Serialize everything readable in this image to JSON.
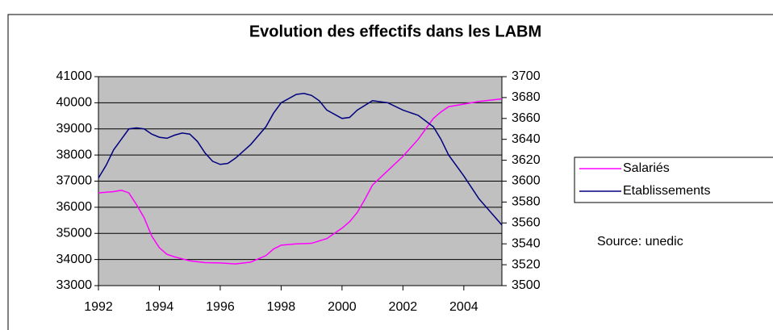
{
  "chart_data": {
    "type": "line",
    "title": "Evolution des effectifs dans les LABM",
    "annotation": "Source: unedic",
    "xlim": [
      1992,
      2005.25
    ],
    "xticks": [
      1992,
      1994,
      1996,
      1998,
      2000,
      2002,
      2004
    ],
    "ylim": [
      33000,
      41000
    ],
    "yticks": [
      33000,
      34000,
      35000,
      36000,
      37000,
      38000,
      39000,
      40000,
      41000
    ],
    "y2lim": [
      3500,
      3700
    ],
    "y2ticks": [
      3500,
      3520,
      3540,
      3560,
      3580,
      3600,
      3620,
      3640,
      3660,
      3680,
      3700
    ],
    "grid": true,
    "legend": "right",
    "series": [
      {
        "name": "Salariés",
        "color": "#ff00ff",
        "axis": "y",
        "x": [
          1992,
          1992.5,
          1992.75,
          1993,
          1993.25,
          1993.5,
          1993.75,
          1994,
          1994.25,
          1994.5,
          1995,
          1995.5,
          1996,
          1996.5,
          1997,
          1997.5,
          1997.75,
          1998,
          1998.5,
          1999,
          1999.5,
          2000,
          2000.25,
          2000.5,
          2000.75,
          2001,
          2001.5,
          2002,
          2002.5,
          2003,
          2003.25,
          2003.5,
          2004,
          2004.5,
          2005.25
        ],
        "values": [
          36550,
          36600,
          36650,
          36550,
          36100,
          35600,
          34900,
          34450,
          34200,
          34100,
          33950,
          33880,
          33870,
          33830,
          33900,
          34150,
          34400,
          34550,
          34600,
          34620,
          34800,
          35200,
          35450,
          35800,
          36300,
          36850,
          37400,
          37950,
          38600,
          39400,
          39650,
          39850,
          39950,
          40050,
          40150
        ]
      },
      {
        "name": "Etablissements",
        "color": "#000080",
        "axis": "y2",
        "x": [
          1992,
          1992.25,
          1992.5,
          1992.75,
          1993,
          1993.25,
          1993.5,
          1993.75,
          1994,
          1994.25,
          1994.5,
          1994.75,
          1995,
          1995.25,
          1995.5,
          1995.75,
          1996,
          1996.25,
          1996.5,
          1997,
          1997.5,
          1997.75,
          1998,
          1998.5,
          1998.75,
          1999,
          1999.25,
          1999.5,
          2000,
          2000.25,
          2000.5,
          2001,
          2001.5,
          2002,
          2002.5,
          2003,
          2003.25,
          2003.5,
          2004,
          2004.5,
          2005.25
        ],
        "values": [
          3603,
          3615,
          3630,
          3640,
          3650,
          3651,
          3650,
          3645,
          3642,
          3641,
          3644,
          3646,
          3645,
          3638,
          3627,
          3619,
          3616,
          3617,
          3622,
          3635,
          3652,
          3665,
          3675,
          3683,
          3684,
          3682,
          3677,
          3668,
          3660,
          3661,
          3668,
          3677,
          3675,
          3668,
          3663,
          3652,
          3640,
          3625,
          3605,
          3583,
          3558
        ]
      }
    ]
  }
}
